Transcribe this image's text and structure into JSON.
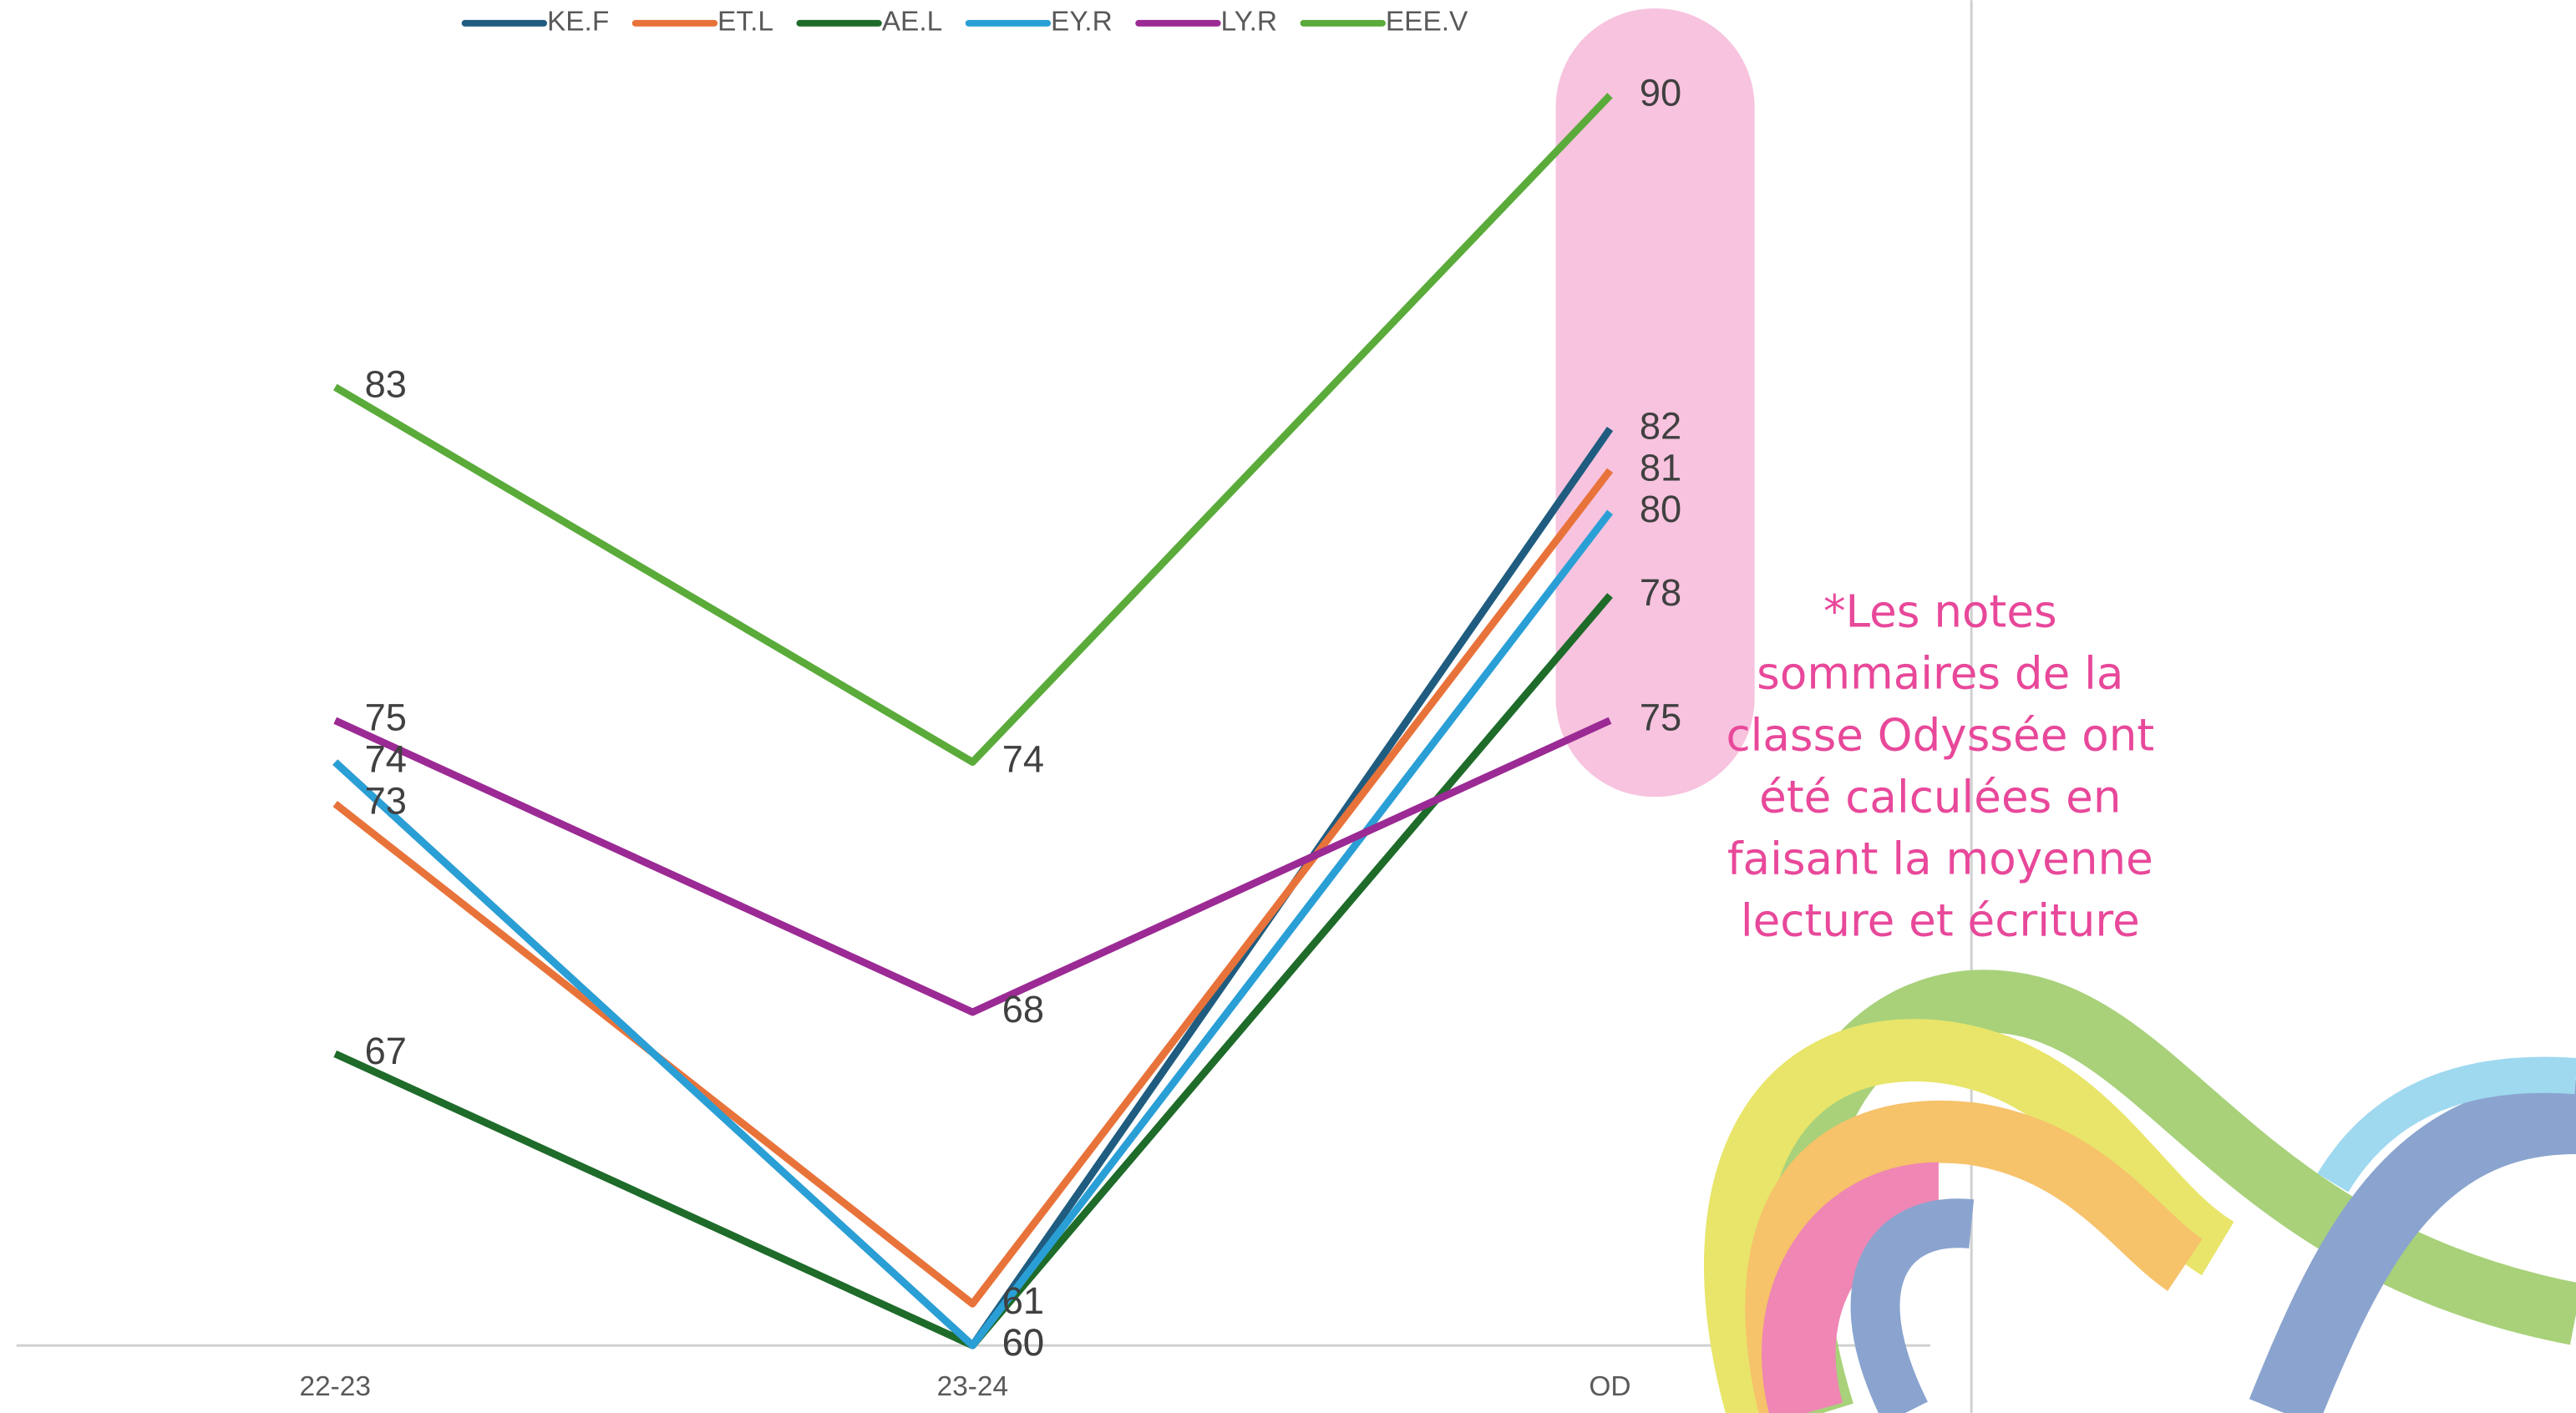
{
  "chart_data": {
    "type": "line",
    "categories": [
      "22-23",
      "23-24",
      "OD"
    ],
    "series": [
      {
        "name": "KE.F",
        "color": "#1f5c80",
        "values": [
          74,
          60,
          82
        ]
      },
      {
        "name": "ET.L",
        "color": "#e8733a",
        "values": [
          73,
          61,
          81
        ]
      },
      {
        "name": "AE.L",
        "color": "#1e6b2a",
        "values": [
          67,
          60,
          78
        ]
      },
      {
        "name": "EY.R",
        "color": "#2a9fd6",
        "values": [
          74,
          60,
          80
        ]
      },
      {
        "name": "LY.R",
        "color": "#9b2a94",
        "values": [
          75,
          68,
          75
        ]
      },
      {
        "name": "EEE.V",
        "color": "#5aab3a",
        "values": [
          83,
          74,
          90
        ]
      }
    ],
    "ylim": [
      60,
      90
    ],
    "legend": "top",
    "note": [
      "*Les notes",
      "sommaires de la",
      "classe Odyssée ont",
      "été calculées en",
      "faisant la moyenne",
      "lecture et écriture"
    ]
  }
}
